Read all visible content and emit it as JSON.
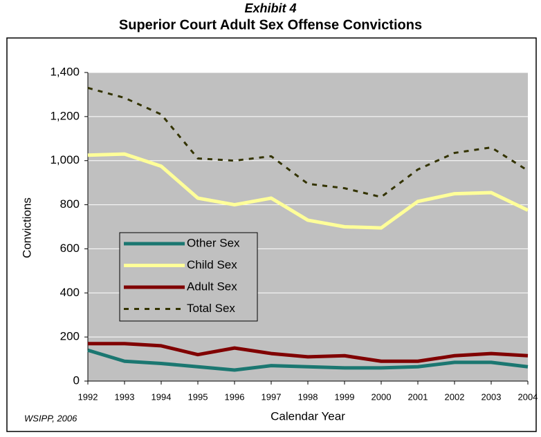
{
  "chart_data": {
    "type": "line",
    "supertitle": "Exhibit 4",
    "title": "Superior Court Adult Sex Offense Convictions",
    "x_label": "Calendar Year",
    "y_label": "Convictions",
    "source": "WSIPP, 2006",
    "x": [
      1992,
      1993,
      1994,
      1995,
      1996,
      1997,
      1998,
      1999,
      2000,
      2001,
      2002,
      2003,
      2004
    ],
    "xlim": [
      1992,
      2004
    ],
    "xticks": [
      1992,
      1993,
      1994,
      1995,
      1996,
      1997,
      1998,
      1999,
      2000,
      2001,
      2002,
      2003,
      2004
    ],
    "ylim": [
      0,
      1400
    ],
    "yticks": [
      0,
      200,
      400,
      600,
      800,
      {
        "value": 1000,
        "label": "1,000"
      },
      {
        "value": 1200,
        "label": "1,200"
      },
      {
        "value": 1400,
        "label": "1,400"
      }
    ],
    "grid": true,
    "legend": "center-left",
    "series": [
      {
        "name": "Other Sex",
        "color": "#1b7771",
        "dash": false,
        "values": [
          140,
          90,
          80,
          65,
          50,
          70,
          65,
          60,
          60,
          65,
          85,
          85,
          65
        ]
      },
      {
        "name": "Child Sex",
        "color": "#ffff99",
        "dash": false,
        "values": [
          1025,
          1030,
          975,
          830,
          800,
          830,
          730,
          700,
          695,
          815,
          850,
          855,
          775
        ]
      },
      {
        "name": "Adult Sex",
        "color": "#800000",
        "dash": false,
        "values": [
          170,
          170,
          160,
          120,
          150,
          125,
          110,
          115,
          90,
          90,
          115,
          125,
          115
        ]
      },
      {
        "name": "Total Sex",
        "color": "#333300",
        "dash": true,
        "values": [
          1330,
          1285,
          1210,
          1010,
          1000,
          1020,
          895,
          875,
          835,
          960,
          1035,
          1060,
          955
        ]
      }
    ]
  }
}
